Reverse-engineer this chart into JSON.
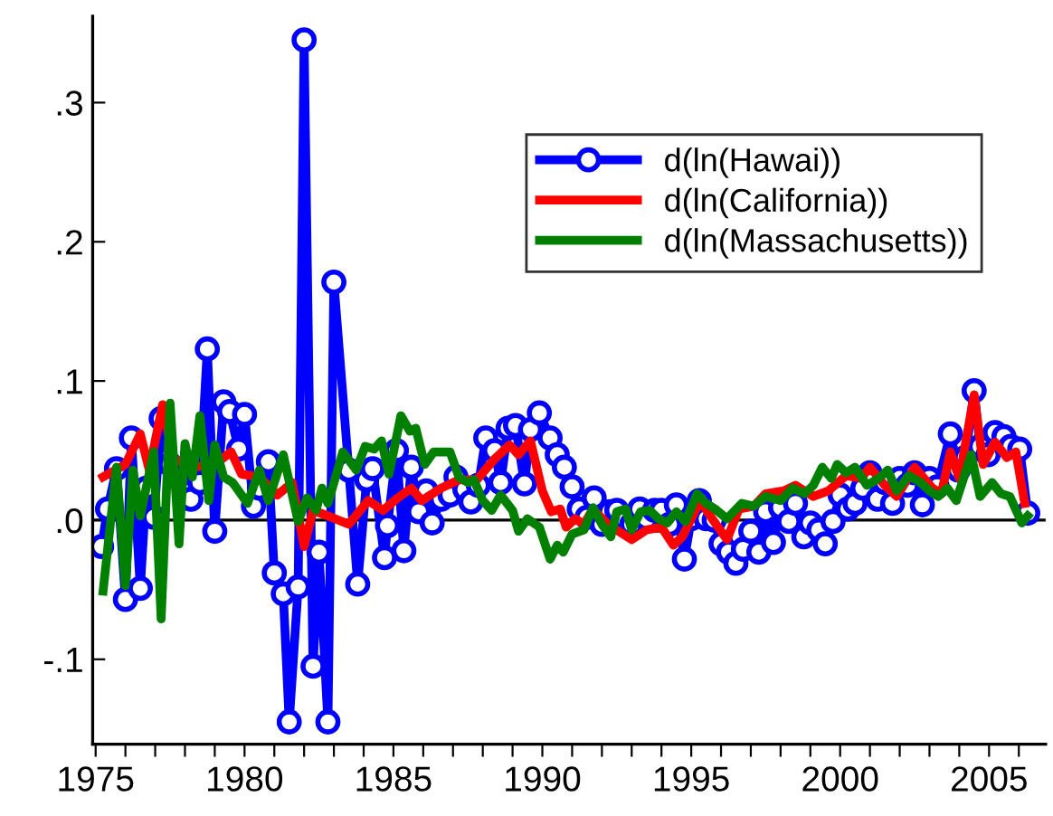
{
  "chart_data": {
    "type": "line",
    "xlim": [
      1974.9,
      2006.9
    ],
    "ylim": [
      -0.161,
      0.362
    ],
    "xticks": [
      1975,
      {
        "value": 1976,
        "label": null
      },
      {
        "value": 1977,
        "label": null
      },
      {
        "value": 1978,
        "label": null
      },
      {
        "value": 1979,
        "label": null
      },
      1980,
      {
        "value": 1981,
        "label": null
      },
      {
        "value": 1982,
        "label": null
      },
      {
        "value": 1983,
        "label": null
      },
      {
        "value": 1984,
        "label": null
      },
      1985,
      {
        "value": 1986,
        "label": null
      },
      {
        "value": 1987,
        "label": null
      },
      {
        "value": 1988,
        "label": null
      },
      {
        "value": 1989,
        "label": null
      },
      1990,
      {
        "value": 1991,
        "label": null
      },
      {
        "value": 1992,
        "label": null
      },
      {
        "value": 1993,
        "label": null
      },
      {
        "value": 1994,
        "label": null
      },
      1995,
      {
        "value": 1996,
        "label": null
      },
      {
        "value": 1997,
        "label": null
      },
      {
        "value": 1998,
        "label": null
      },
      {
        "value": 1999,
        "label": null
      },
      2000,
      {
        "value": 2001,
        "label": null
      },
      {
        "value": 2002,
        "label": null
      },
      {
        "value": 2003,
        "label": null
      },
      {
        "value": 2004,
        "label": null
      },
      2005,
      {
        "value": 2006,
        "label": null
      }
    ],
    "yticks": [
      {
        "value": -0.1,
        "label": "-.1"
      },
      {
        "value": 0.0,
        "label": ".0"
      },
      {
        "value": 0.1,
        "label": ".1"
      },
      {
        "value": 0.2,
        "label": ".2"
      },
      {
        "value": 0.3,
        "label": ".3"
      }
    ],
    "grid": false,
    "legend": "top right",
    "ref_lines": [
      {
        "axis": "y",
        "value": 0,
        "color": "#000000"
      }
    ],
    "series": [
      {
        "name": "d(ln(Hawai))",
        "color": "#0000ff",
        "marker": "circle",
        "x": [
          1975.2,
          1975.4,
          1975.7,
          1976.0,
          1976.2,
          1976.5,
          1976.7,
          1976.96,
          1977.2,
          1977.5,
          1977.8,
          1978.0,
          1978.2,
          1978.5,
          1978.75,
          1979.0,
          1979.3,
          1979.5,
          1979.8,
          1980.0,
          1980.3,
          1980.5,
          1980.8,
          1981.0,
          1981.3,
          1981.5,
          1981.8,
          1982.0,
          1982.3,
          1982.5,
          1982.8,
          1983.0,
          1983.5,
          1983.8,
          1984.1,
          1984.3,
          1984.7,
          1984.8,
          1985.1,
          1985.35,
          1985.6,
          1985.85,
          1986.1,
          1986.3,
          1986.6,
          1986.9,
          1987.1,
          1987.4,
          1987.6,
          1987.85,
          1988.1,
          1988.4,
          1988.6,
          1988.85,
          1989.1,
          1989.4,
          1989.6,
          1989.9,
          1990.26,
          1990.5,
          1990.74,
          1991.0,
          1991.24,
          1991.5,
          1991.74,
          1992.0,
          1992.26,
          1992.5,
          1992.77,
          1993.0,
          1993.27,
          1993.5,
          1993.77,
          1994.0,
          1994.27,
          1994.5,
          1994.77,
          1995.0,
          1995.27,
          1995.5,
          1995.77,
          1996.0,
          1996.25,
          1996.5,
          1996.75,
          1997.0,
          1997.27,
          1997.5,
          1997.76,
          1998.0,
          1998.28,
          1998.5,
          1998.78,
          1999.0,
          1999.28,
          1999.5,
          1999.76,
          2000.0,
          2000.26,
          2000.5,
          2000.76,
          2001.0,
          2001.26,
          2001.5,
          2001.76,
          2002.0,
          2002.26,
          2002.5,
          2002.76,
          2003.0,
          2003.26,
          2003.7,
          2003.97,
          2004.2,
          2004.5,
          2004.7,
          2004.97,
          2005.2,
          2005.5,
          2005.73,
          2006.03,
          2006.3
        ],
        "values": [
          -0.019,
          0.008,
          0.037,
          -0.057,
          0.059,
          -0.049,
          0.023,
          0.002,
          0.073,
          0.04,
          0.03,
          0.02,
          0.015,
          0.027,
          0.123,
          -0.008,
          0.085,
          0.078,
          0.051,
          0.076,
          0.01,
          0.023,
          0.042,
          -0.038,
          -0.053,
          -0.145,
          -0.048,
          0.345,
          -0.105,
          -0.023,
          -0.145,
          0.171,
          0.036,
          -0.046,
          0.029,
          0.037,
          -0.027,
          -0.004,
          0.05,
          -0.022,
          0.038,
          0.006,
          0.021,
          -0.002,
          0.015,
          0.018,
          0.031,
          0.022,
          0.013,
          0.025,
          0.059,
          0.05,
          0.027,
          0.066,
          0.068,
          0.026,
          0.065,
          0.077,
          0.059,
          0.047,
          0.038,
          0.024,
          0.008,
          0.002,
          0.016,
          -0.003,
          0.006,
          0.007,
          0.001,
          -0.003,
          0.008,
          0.001,
          0.007,
          0.007,
          -0.003,
          0.011,
          -0.028,
          0.001,
          0.014,
          0.001,
          0.0,
          -0.017,
          -0.023,
          -0.031,
          -0.021,
          -0.008,
          -0.023,
          0.006,
          -0.016,
          0.009,
          -0.001,
          0.012,
          -0.012,
          -0.002,
          -0.007,
          -0.017,
          -0.001,
          0.018,
          0.008,
          0.012,
          0.023,
          0.034,
          0.015,
          0.027,
          0.012,
          0.03,
          0.025,
          0.034,
          0.011,
          0.03,
          0.024,
          0.062,
          0.036,
          0.045,
          0.093,
          0.053,
          0.047,
          0.063,
          0.06,
          0.053,
          0.051,
          0.005
        ]
      },
      {
        "name": "d(ln(California))",
        "color": "#ff0000",
        "x": [
          1975.25,
          1976.0,
          1976.5,
          1976.8,
          1977.25,
          1977.6,
          1978.3,
          1979.0,
          1979.55,
          1979.9,
          1980.5,
          1981.1,
          1981.6,
          1982.0,
          1982.3,
          1982.8,
          1983.5,
          1984.15,
          1984.65,
          1985.15,
          1985.6,
          1985.95,
          1986.6,
          1987.2,
          1987.8,
          1988.4,
          1988.9,
          1989.2,
          1989.6,
          1990.0,
          1990.3,
          1990.6,
          1990.8,
          1991.1,
          1991.4,
          1991.7,
          1992.2,
          1993.0,
          1993.5,
          1994.0,
          1994.4,
          1994.7,
          1995.3,
          1995.7,
          1996.2,
          1996.6,
          1997.1,
          1997.5,
          1998.1,
          1998.5,
          1999.1,
          1999.6,
          2000.2,
          2000.7,
          2001.0,
          2001.5,
          2001.9,
          2002.5,
          2003.1,
          2003.4,
          2003.7,
          2004.0,
          2004.5,
          2004.8,
          2005.2,
          2005.6,
          2005.9,
          2006.2
        ],
        "values": [
          0.031,
          0.04,
          0.062,
          0.036,
          0.083,
          0.044,
          0.038,
          0.04,
          0.049,
          0.033,
          0.031,
          0.018,
          0.027,
          -0.019,
          0.007,
          0.003,
          -0.003,
          0.014,
          0.007,
          0.016,
          0.023,
          0.014,
          0.023,
          0.029,
          0.029,
          0.044,
          0.054,
          0.047,
          0.057,
          0.021,
          0.006,
          0.008,
          -0.005,
          0.001,
          -0.003,
          0.008,
          -0.003,
          -0.014,
          -0.007,
          -0.005,
          -0.018,
          -0.012,
          0.014,
          0.001,
          -0.014,
          0.008,
          0.01,
          0.019,
          0.021,
          0.025,
          0.017,
          0.021,
          0.032,
          0.03,
          0.038,
          0.025,
          0.017,
          0.038,
          0.023,
          0.019,
          0.049,
          0.03,
          0.09,
          0.04,
          0.056,
          0.045,
          0.049,
          0.012
        ]
      },
      {
        "name": "d(ln(Massachusetts))",
        "color": "#008000",
        "x": [
          1975.25,
          1975.7,
          1976.0,
          1976.25,
          1976.5,
          1976.95,
          1977.2,
          1977.5,
          1977.8,
          1978.0,
          1978.25,
          1978.5,
          1978.8,
          1979.0,
          1979.3,
          1979.6,
          1980.1,
          1980.5,
          1980.8,
          1981.3,
          1981.8,
          1982.1,
          1982.4,
          1982.6,
          1982.8,
          1983.3,
          1983.75,
          1984.05,
          1984.35,
          1984.6,
          1984.85,
          1985.25,
          1985.55,
          1985.75,
          1986.05,
          1986.35,
          1986.9,
          1987.2,
          1987.5,
          1987.7,
          1988.0,
          1988.3,
          1988.6,
          1989.0,
          1989.2,
          1989.5,
          1989.9,
          1990.26,
          1990.5,
          1990.7,
          1991.0,
          1991.4,
          1991.7,
          1992.0,
          1992.3,
          1992.5,
          1992.8,
          1993.0,
          1993.3,
          1993.6,
          1993.9,
          1994.2,
          1994.5,
          1994.8,
          1995.2,
          1995.5,
          1995.8,
          1996.2,
          1996.7,
          1997.1,
          1997.5,
          1998.0,
          1998.4,
          1998.8,
          1999.1,
          1999.4,
          1999.7,
          1999.9,
          2000.2,
          2000.5,
          2000.9,
          2001.3,
          2001.6,
          2001.9,
          2002.3,
          2002.7,
          2003.0,
          2003.3,
          2003.6,
          2003.9,
          2004.4,
          2004.7,
          2005.1,
          2005.4,
          2005.7,
          2006.1,
          2006.3
        ],
        "values": [
          -0.051,
          0.038,
          -0.047,
          0.036,
          0.003,
          0.049,
          -0.071,
          0.084,
          -0.017,
          0.055,
          0.031,
          0.075,
          0.014,
          0.054,
          0.031,
          0.027,
          0.012,
          0.036,
          0.014,
          0.047,
          -0.001,
          0.016,
          0.007,
          0.023,
          0.012,
          0.049,
          0.036,
          0.053,
          0.051,
          0.057,
          0.033,
          0.075,
          0.064,
          0.066,
          0.04,
          0.049,
          0.049,
          0.031,
          0.027,
          0.029,
          0.014,
          0.007,
          0.018,
          0.007,
          -0.008,
          0.001,
          -0.005,
          -0.028,
          -0.018,
          -0.023,
          -0.01,
          -0.007,
          0.009,
          -0.003,
          -0.012,
          0.006,
          0.008,
          -0.007,
          0.006,
          0.007,
          0.001,
          -0.002,
          0.006,
          -0.001,
          0.019,
          0.012,
          0.008,
          0.001,
          0.012,
          0.01,
          0.017,
          0.014,
          0.023,
          0.019,
          0.025,
          0.038,
          0.03,
          0.04,
          0.034,
          0.038,
          0.025,
          0.03,
          0.036,
          0.021,
          0.032,
          0.027,
          0.021,
          0.017,
          0.023,
          0.014,
          0.047,
          0.017,
          0.027,
          0.019,
          0.017,
          -0.002,
          0.003
        ]
      }
    ]
  }
}
